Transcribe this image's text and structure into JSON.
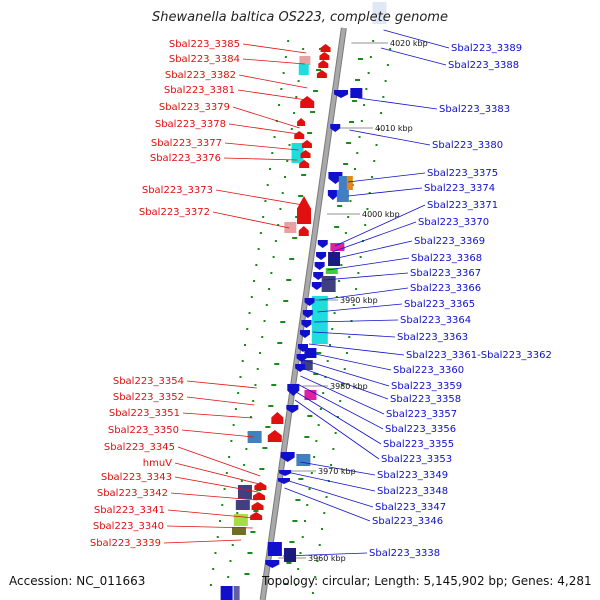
{
  "title": "Shewanella baltica OS223, complete genome",
  "accession": "Accession: NC_011663",
  "topology": "Topology: circular; Length: 5,145,902 bp; Genes: 4,281",
  "colors": {
    "left_label": "#e01010",
    "right_label": "#1010cc",
    "backbone": "#a9a9a9",
    "tick": "#1a8a1a"
  },
  "scale_ticks": [
    "4020 kbp",
    "4010 kbp",
    "4000 kbp",
    "3990 kbp",
    "3980 kbp",
    "3970 kbp",
    "3960 kbp"
  ],
  "left_labels": [
    "Sbal223_3385",
    "Sbal223_3384",
    "Sbal223_3382",
    "Sbal223_3381",
    "Sbal223_3379",
    "Sbal223_3378",
    "Sbal223_3377",
    "Sbal223_3376",
    "Sbal223_3373",
    "Sbal223_3372",
    "Sbal223_3354",
    "Sbal223_3352",
    "Sbal223_3351",
    "Sbal223_3350",
    "Sbal223_3345",
    "hmuV",
    "Sbal223_3343",
    "Sbal223_3342",
    "Sbal223_3341",
    "Sbal223_3340",
    "Sbal223_3339"
  ],
  "right_labels": [
    "Sbal223_3389",
    "Sbal223_3388",
    "Sbal223_3383",
    "Sbal223_3380",
    "Sbal223_3375",
    "Sbal223_3374",
    "Sbal223_3371",
    "Sbal223_3370",
    "Sbal223_3369",
    "Sbal223_3368",
    "Sbal223_3367",
    "Sbal223_3366",
    "Sbal223_3365",
    "Sbal223_3364",
    "Sbal223_3363",
    "Sbal223_3361-Sbal223_3362",
    "Sbal223_3360",
    "Sbal223_3359",
    "Sbal223_3358",
    "Sbal223_3357",
    "Sbal223_3356",
    "Sbal223_3355",
    "Sbal223_3353",
    "Sbal223_3349",
    "Sbal223_3348",
    "Sbal223_3347",
    "Sbal223_3346",
    "Sbal223_3338"
  ]
}
